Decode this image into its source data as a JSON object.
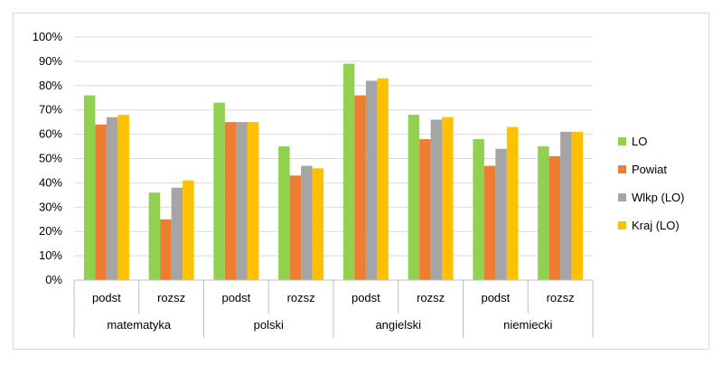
{
  "chart_data": {
    "type": "bar",
    "groups": [
      "matematyka",
      "polski",
      "angielski",
      "niemiecki"
    ],
    "subcategories": [
      "podst",
      "rozsz"
    ],
    "categories": [
      "matematyka podst",
      "matematyka rozsz",
      "polski podst",
      "polski rozsz",
      "angielski podst",
      "angielski rozsz",
      "niemiecki podst",
      "niemiecki rozsz"
    ],
    "series": [
      {
        "name": "LO",
        "color": "#92d050",
        "values": [
          76,
          36,
          73,
          55,
          89,
          68,
          58,
          55
        ]
      },
      {
        "name": "Powiat",
        "color": "#ed7d31",
        "values": [
          64,
          25,
          65,
          43,
          76,
          58,
          47,
          51
        ]
      },
      {
        "name": "Wlkp (LO)",
        "color": "#a5a5a5",
        "values": [
          67,
          38,
          65,
          47,
          82,
          66,
          54,
          61
        ]
      },
      {
        "name": "Kraj (LO)",
        "color": "#ffc000",
        "values": [
          68,
          41,
          65,
          46,
          83,
          67,
          63,
          61
        ]
      }
    ],
    "ylim": [
      0,
      100
    ],
    "ytick_step": 10,
    "ytick_format": "percent",
    "grid": true,
    "legend_position": "right"
  }
}
